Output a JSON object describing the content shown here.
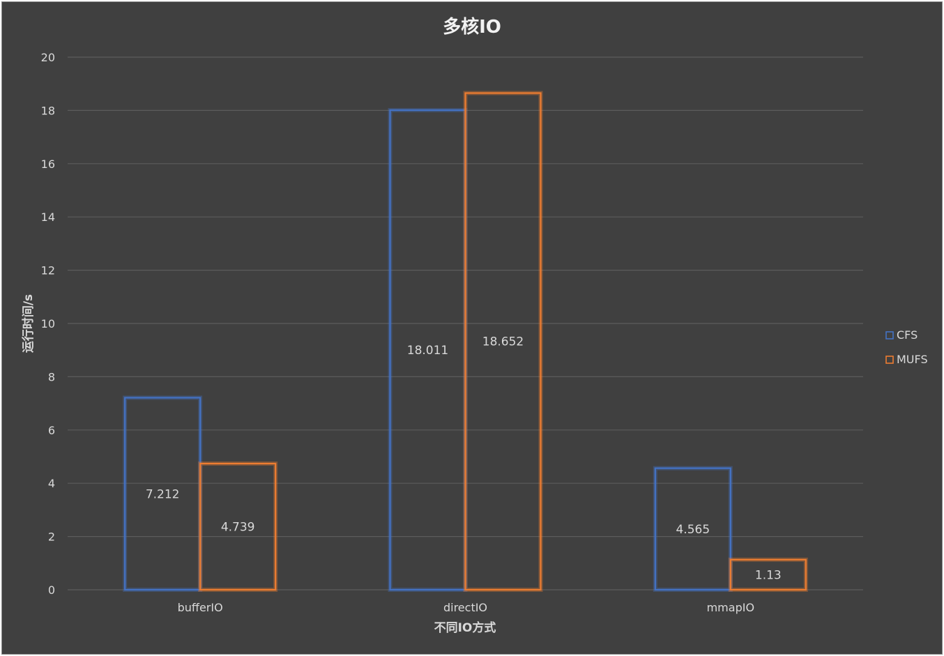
{
  "chart_data": {
    "type": "bar",
    "title": "多核IO",
    "xlabel": "不同IO方式",
    "ylabel": "运行时间/s",
    "categories": [
      "bufferIO",
      "directIO",
      "mmapIO"
    ],
    "series": [
      {
        "name": "CFS",
        "values": [
          7.212,
          18.011,
          4.565
        ],
        "color": "#4472c4",
        "labels": [
          "7.212",
          "18.011",
          "4.565"
        ]
      },
      {
        "name": "MUFS",
        "values": [
          4.739,
          18.652,
          1.13
        ],
        "color": "#ed7d31",
        "labels": [
          "4.739",
          "18.652",
          "1.13"
        ]
      }
    ],
    "ylim": [
      0,
      20
    ],
    "yticks": [
      0,
      2,
      4,
      6,
      8,
      10,
      12,
      14,
      16,
      18,
      20
    ],
    "grid": true,
    "legend_position": "right",
    "bar_style": "outline"
  }
}
